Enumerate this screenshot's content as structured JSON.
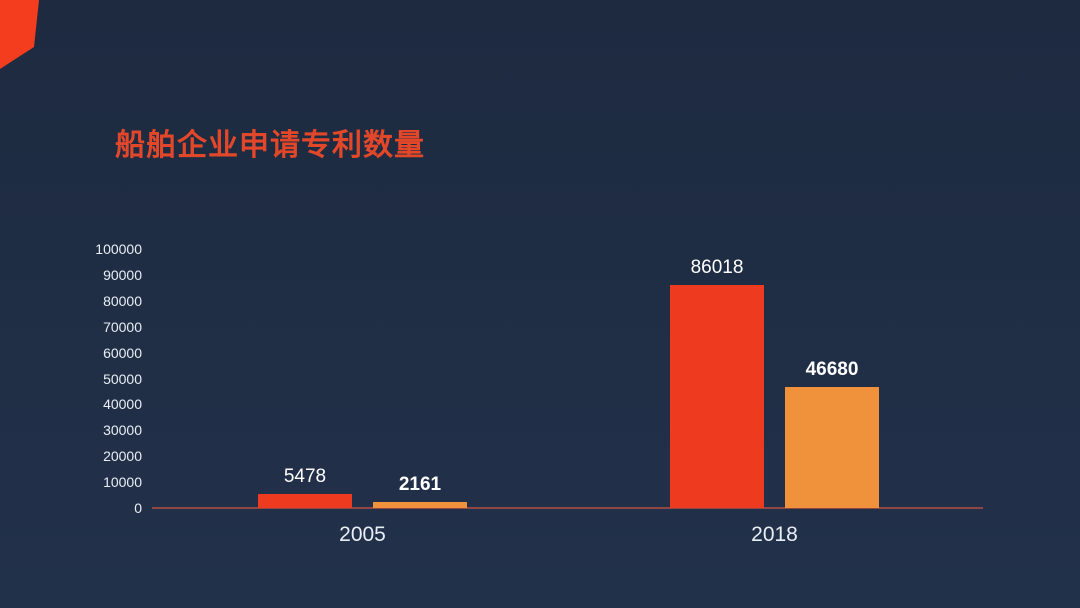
{
  "slide": {
    "background_color": "#1f2d44",
    "accent_shape_color": "#f43d1e"
  },
  "title": {
    "text": "船舶企业申请专利数量",
    "color": "#e3472a"
  },
  "chart_data": {
    "type": "bar",
    "title": "船舶企业申请专利数量",
    "categories": [
      "2005",
      "2018"
    ],
    "series": [
      {
        "name": "red-series",
        "color": "#ee3b20",
        "values": [
          5478,
          86018
        ],
        "data_labels": [
          "5478",
          "86018"
        ],
        "label_bold": false
      },
      {
        "name": "orange-series",
        "color": "#f0913c",
        "values": [
          2161,
          46680
        ],
        "data_labels": [
          "2161",
          "46680"
        ],
        "label_bold": true
      }
    ],
    "xlabel": "",
    "ylabel": "",
    "ylim": [
      0,
      100000
    ],
    "ytick_step": 10000,
    "ytick_labels": [
      "0",
      "10000",
      "20000",
      "30000",
      "40000",
      "50000",
      "60000",
      "70000",
      "80000",
      "90000",
      "100000"
    ],
    "grid": false,
    "legend": "none",
    "axis_line_color": "#8e4743",
    "tick_label_color": "#e9eef4",
    "x_label_color": "#e9eef4",
    "data_label_color": "#ffffff"
  }
}
